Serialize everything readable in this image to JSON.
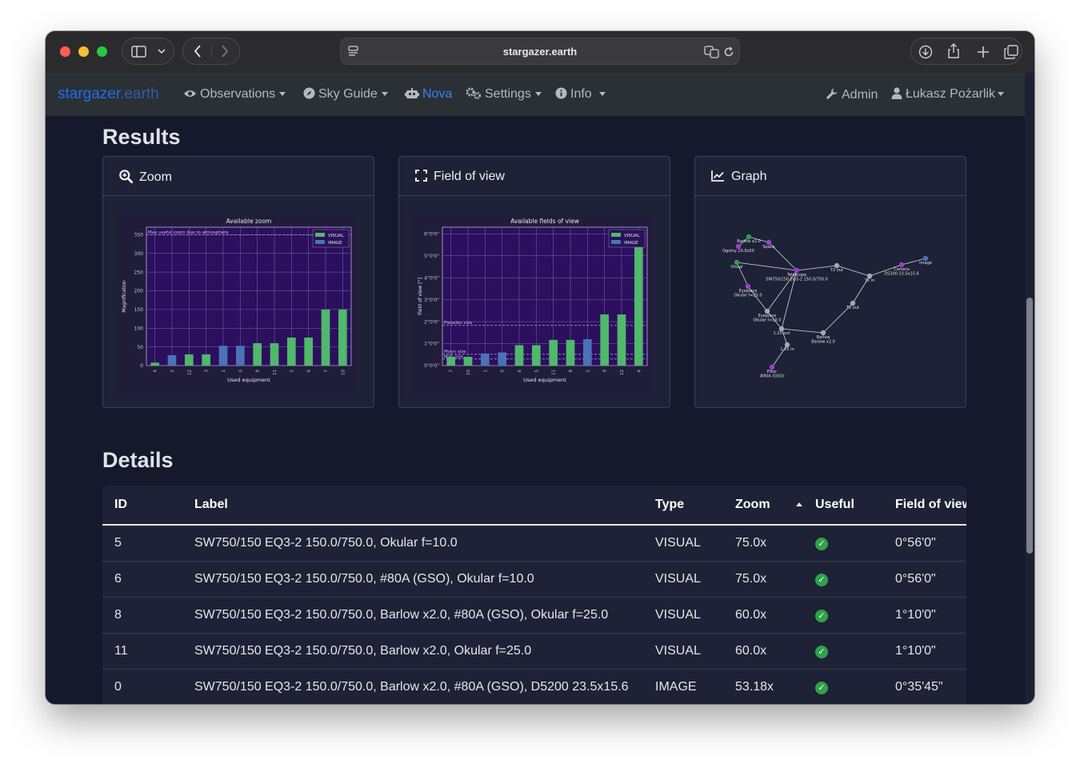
{
  "browser": {
    "url": "stargazer.earth"
  },
  "navbar": {
    "brand_part1": "stargazer",
    "brand_part2": ".earth",
    "items": [
      {
        "label": "Observations"
      },
      {
        "label": "Sky Guide"
      },
      {
        "label": "Nova"
      },
      {
        "label": "Settings"
      },
      {
        "label": "Info"
      }
    ],
    "admin_label": "Admin",
    "user_label": "Łukasz Pożarlik"
  },
  "results": {
    "heading": "Results",
    "cards": [
      {
        "title": "Zoom"
      },
      {
        "title": "Field of view"
      },
      {
        "title": "Graph"
      }
    ]
  },
  "chart_data": [
    {
      "type": "bar",
      "title": "Available zoom",
      "xlabel": "Used equipment",
      "ylabel": "Magnification",
      "categories": [
        "4",
        "2",
        "12",
        "3",
        "1",
        "0",
        "8",
        "11",
        "5",
        "6",
        "7",
        "10"
      ],
      "values": [
        8,
        28,
        30,
        30,
        53,
        53,
        60,
        60,
        75,
        75,
        150,
        150
      ],
      "series_type": [
        "VISUAL",
        "IMAGE",
        "VISUAL",
        "VISUAL",
        "IMAGE",
        "IMAGE",
        "VISUAL",
        "VISUAL",
        "VISUAL",
        "VISUAL",
        "VISUAL",
        "VISUAL"
      ],
      "ylim": [
        0,
        370
      ],
      "yticks": [
        0,
        50,
        100,
        150,
        200,
        250,
        300,
        350
      ],
      "legend": [
        "VISUAL",
        "IMAGE"
      ],
      "legend_position": "top-right",
      "annotation": "Max useful zoom due to atmosphere",
      "annotation_value": 350,
      "colors": {
        "VISUAL": "#4fb86b",
        "IMAGE": "#4a72b8",
        "background": "#2c0f5e",
        "grid": "#7b6aa8"
      }
    },
    {
      "type": "bar",
      "title": "Available fields of view",
      "xlabel": "Used equipment",
      "ylabel": "Field of view [°]",
      "categories": [
        "7",
        "10",
        "1",
        "0",
        "6",
        "5",
        "11",
        "8",
        "2",
        "9",
        "12",
        "4"
      ],
      "values": [
        0.4,
        0.4,
        0.55,
        0.6,
        0.93,
        0.93,
        1.17,
        1.17,
        1.2,
        2.33,
        2.33,
        5.5
      ],
      "series_type": [
        "VISUAL",
        "VISUAL",
        "IMAGE",
        "IMAGE",
        "VISUAL",
        "VISUAL",
        "VISUAL",
        "VISUAL",
        "IMAGE",
        "VISUAL",
        "VISUAL",
        "VISUAL"
      ],
      "ylim": [
        0,
        6.3
      ],
      "yticks": [
        "0°0'0\"",
        "1°0'0\"",
        "2°0'0\"",
        "3°0'0\"",
        "4°0'0\"",
        "5°0'0\"",
        "6°0'0\""
      ],
      "legend": [
        "VISUAL",
        "IMAGE"
      ],
      "legend_position": "top-right",
      "reference_lines": [
        {
          "label": "Pleiades size",
          "value": 1.83
        },
        {
          "label": "Moon size",
          "value": 0.52
        },
        {
          "label": "M31 size",
          "value": 0.3
        }
      ],
      "colors": {
        "VISUAL": "#4fb86b",
        "IMAGE": "#4a72b8",
        "background": "#2c0f5e",
        "grid": "#7b6aa8"
      }
    }
  ],
  "graph": {
    "nodes": [
      {
        "label": "Barlow x2.0"
      },
      {
        "label": "Ogolny 10.0x50"
      },
      {
        "label": "Space"
      },
      {
        "label": "Visual"
      },
      {
        "label": "Telescope\nSW750/150 EQ3-2 150.0/750.0"
      },
      {
        "label": "T2 out"
      },
      {
        "label": "T2 in"
      },
      {
        "label": "Camera\nD5200 23.5x15.6"
      },
      {
        "label": "Image"
      },
      {
        "label": "Eyepiece\nOkular f=25.0"
      },
      {
        "label": "Eyepiece\nOkular f=10.0"
      },
      {
        "label": "1.25 out"
      },
      {
        "label": "1.25 in"
      },
      {
        "label": "T2 out"
      },
      {
        "label": "Barlow\nBarlow x2.0"
      },
      {
        "label": "Filter\n#80A (GSO)"
      }
    ]
  },
  "details": {
    "heading": "Details",
    "columns": [
      "ID",
      "Label",
      "Type",
      "Zoom",
      "Useful",
      "Field of view"
    ],
    "rows": [
      {
        "id": "5",
        "label": "SW750/150 EQ3-2 150.0/750.0, Okular f=10.0",
        "type": "VISUAL",
        "zoom": "75.0x",
        "fov": "0°56'0\""
      },
      {
        "id": "6",
        "label": "SW750/150 EQ3-2 150.0/750.0, #80A (GSO), Okular f=10.0",
        "type": "VISUAL",
        "zoom": "75.0x",
        "fov": "0°56'0\""
      },
      {
        "id": "8",
        "label": "SW750/150 EQ3-2 150.0/750.0, Barlow x2.0, #80A (GSO), Okular f=25.0",
        "type": "VISUAL",
        "zoom": "60.0x",
        "fov": "1°10'0\""
      },
      {
        "id": "11",
        "label": "SW750/150 EQ3-2 150.0/750.0, Barlow x2.0, Okular f=25.0",
        "type": "VISUAL",
        "zoom": "60.0x",
        "fov": "1°10'0\""
      },
      {
        "id": "0",
        "label": "SW750/150 EQ3-2 150.0/750.0, Barlow x2.0, #80A (GSO), D5200 23.5x15.6",
        "type": "IMAGE",
        "zoom": "53.18x",
        "fov": "0°35'45\""
      }
    ]
  }
}
